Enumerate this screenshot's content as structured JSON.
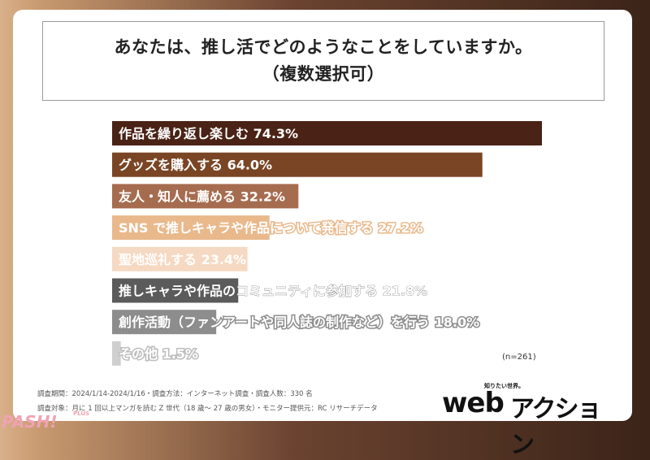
{
  "title": {
    "line1": "あなたは、推し活でどのようなことをしていますか。",
    "line2": "（複数選択可）"
  },
  "chart_data": {
    "type": "bar",
    "orientation": "horizontal",
    "categories": [
      "作品を繰り返し楽しむ",
      "グッズを購入する",
      "友人・知人に薦める",
      "SNS で推しキャラや作品について発信する",
      "聖地巡礼する",
      "推しキャラや作品のコミュニティに参加する",
      "創作活動（ファンアートや同人誌の制作など）を行う",
      "その他"
    ],
    "values": [
      74.3,
      64.0,
      32.2,
      27.2,
      23.4,
      21.8,
      18.0,
      1.5
    ],
    "value_labels": [
      "74.3%",
      "64.0%",
      "32.2%",
      "27.2%",
      "23.4%",
      "21.8%",
      "18.0%",
      "1.5%"
    ],
    "colors": [
      "#4a2316",
      "#7a4524",
      "#a66c4f",
      "#e9b98c",
      "#f6d9c2",
      "#5b5b5b",
      "#8d8d8d",
      "#cfcfcf"
    ],
    "xlim": [
      0,
      100
    ],
    "sample_note": "(n=261)"
  },
  "footnotes": [
    "調査期間：2024/1/14-2024/1/16・調査方法：インターネット調査・調査人数：330 名",
    "調査対象：月に 1 回以上マンガを読む Z 世代（18 歳～ 27 歳の男女）・モニター提供元：RC リサーチデータ"
  ],
  "logo": {
    "tagline": "知りたい世界。",
    "web": "web",
    "action": "アクション"
  },
  "watermark": {
    "text": "PASH!",
    "plus": "PLUS"
  }
}
